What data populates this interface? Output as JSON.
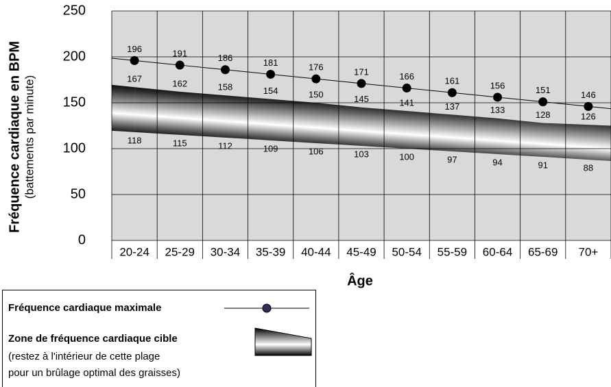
{
  "chart_data": {
    "type": "line",
    "y_label": "Fréquence cardiaque en BPM",
    "y_sublabel": "(battements par minute)",
    "x_label": "Âge",
    "categories": [
      "20-24",
      "25-29",
      "30-34",
      "35-39",
      "40-44",
      "45-49",
      "50-54",
      "55-59",
      "60-64",
      "65-69",
      "70+"
    ],
    "series": [
      {
        "name": "Fréquence cardiaque maximale",
        "color": "#000000",
        "marker_color": "#2e2e5e",
        "values": [
          196,
          191,
          186,
          181,
          176,
          171,
          166,
          161,
          156,
          151,
          146
        ]
      },
      {
        "name": "Zone de fréquence cardiaque cible",
        "type": "band",
        "note": [
          "(restez à l'intérieur de cette plage",
          "pour un brûlage optimal des graisses)"
        ],
        "high": [
          167,
          162,
          158,
          154,
          150,
          145,
          141,
          137,
          133,
          128,
          126
        ],
        "low": [
          118,
          115,
          112,
          109,
          106,
          103,
          100,
          97,
          94,
          91,
          88
        ]
      }
    ],
    "ylim": [
      0,
      250
    ],
    "yticks": [
      0,
      50,
      100,
      150,
      200,
      250
    ],
    "grid": true,
    "background": "#d9d9d9",
    "legend": "bottom-left"
  }
}
